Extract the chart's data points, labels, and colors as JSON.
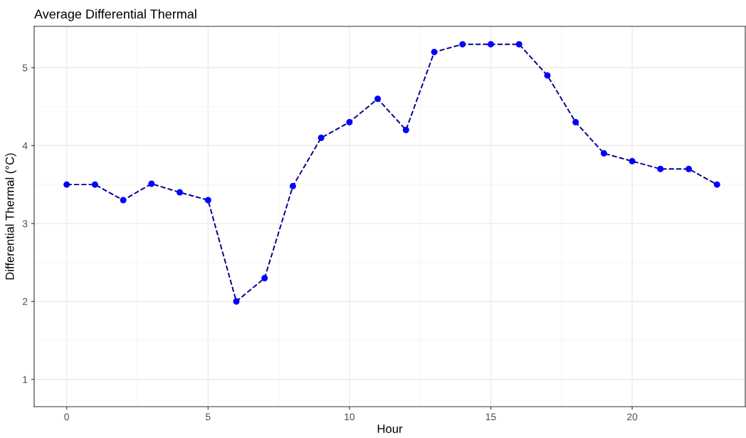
{
  "chart_data": {
    "type": "line",
    "title": "Average Differential Thermal",
    "xlabel": "Hour",
    "ylabel": "Differential Thermal (°C)",
    "x": [
      0,
      1,
      2,
      3,
      4,
      5,
      6,
      7,
      8,
      9,
      10,
      11,
      12,
      13,
      14,
      15,
      16,
      17,
      18,
      19,
      20,
      21,
      22,
      23
    ],
    "series": [
      {
        "color": "#00008b",
        "line_style": "dashed",
        "values": [
          3.5,
          3.5,
          3.3,
          3.51,
          3.4,
          3.3,
          2.0,
          2.3,
          3.48,
          4.1,
          4.3,
          4.6,
          4.2,
          5.2,
          5.3,
          5.3,
          5.3,
          4.9,
          4.3,
          3.9,
          3.8,
          3.7,
          3.7,
          3.5
        ]
      },
      {
        "type": "scatter",
        "color": "#0000ff",
        "marker": "circle",
        "values": [
          3.5,
          3.5,
          3.3,
          3.51,
          3.4,
          3.3,
          2.0,
          2.3,
          3.48,
          4.1,
          4.3,
          4.6,
          4.2,
          5.2,
          5.3,
          5.3,
          5.3,
          4.9,
          4.3,
          3.9,
          3.8,
          3.7,
          3.7,
          3.5
        ]
      }
    ],
    "xlim": [
      -1.15,
      24.0
    ],
    "xticks": [
      0,
      5,
      10,
      15,
      20
    ],
    "ylim": [
      0.65,
      5.53
    ],
    "yticks": [
      1,
      2,
      3,
      4,
      5
    ],
    "grid": true,
    "legend": false
  }
}
